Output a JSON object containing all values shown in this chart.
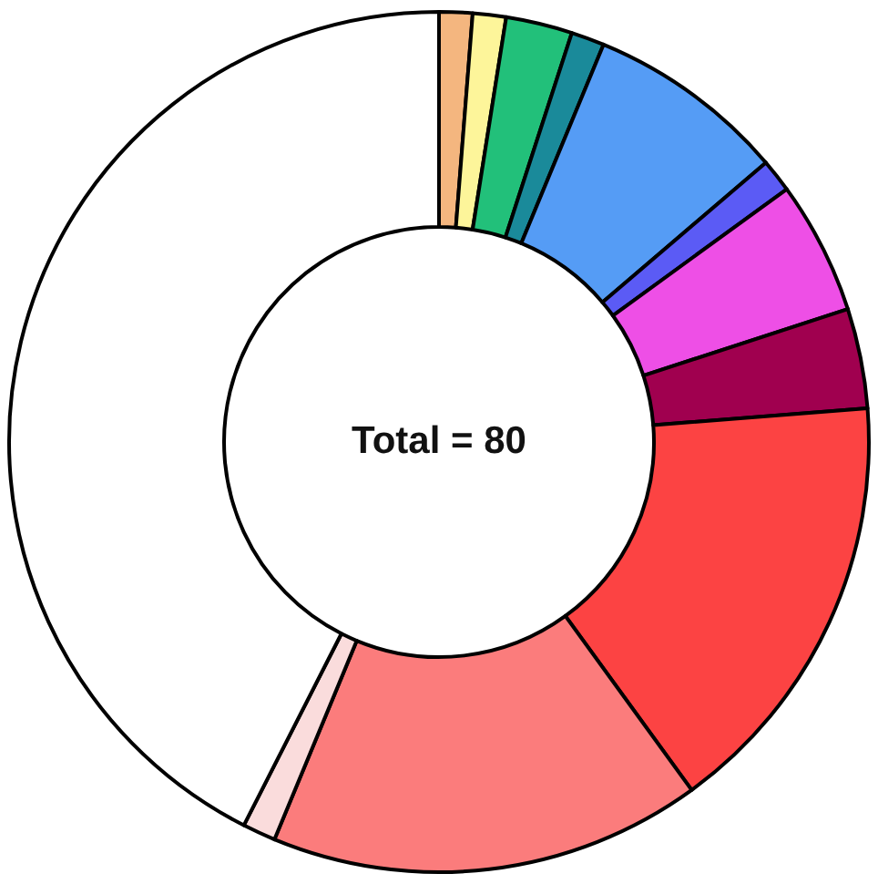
{
  "chart_data": {
    "type": "donut",
    "categories": [
      null,
      null,
      null,
      null,
      null,
      null,
      null,
      null,
      null,
      null,
      null,
      null
    ],
    "values": [
      1.25,
      1.25,
      2.5,
      1.25,
      7.5,
      1.25,
      5,
      3.75,
      16.25,
      16.25,
      1.25,
      42.5
    ],
    "colors": [
      "#f4b67f",
      "#fdf59a",
      "#22c07a",
      "#1a8a9a",
      "#559cf5",
      "#5b5bf5",
      "#ee4fe6",
      "#a0004f",
      "#fc4343",
      "#fb7c7c",
      "#fadcdc",
      "#ffffff"
    ],
    "annotations": [
      "Total = 80"
    ]
  }
}
